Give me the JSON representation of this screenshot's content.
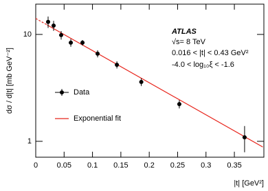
{
  "chart_data": {
    "type": "scatter",
    "x_label": "|t| [GeV²]",
    "y_label": "dσ / d|t| [mb GeV⁻²]",
    "annotations": [
      "ATLAS",
      "√s= 8 TeV",
      "0.016 < |t| < 0.43 GeV²",
      "-4.0 < log₁₀ξ < -1.6"
    ],
    "xlim": [
      0,
      0.402
    ],
    "ylim": [
      0.71,
      19.2
    ],
    "log_y": true,
    "xticks": [
      0,
      0.05,
      0.1,
      0.15,
      0.2,
      0.25,
      0.3,
      0.35
    ],
    "yticks": [
      1,
      10
    ],
    "series": [
      {
        "name": "Data",
        "color": "#000000",
        "x": [
          0.0218,
          0.0315,
          0.0448,
          0.0618,
          0.0824,
          0.109,
          0.143,
          0.186,
          0.253,
          0.368
        ],
        "values": [
          13.1,
          12.1,
          9.85,
          8.37,
          8.37,
          6.6,
          5.2,
          3.59,
          2.23,
          1.09
        ],
        "errors": [
          1.6,
          1.3,
          0.9,
          0.7,
          0.5,
          0.5,
          0.4,
          0.3,
          0.2,
          0.3
        ]
      },
      {
        "name": "Exponential fit",
        "color": "#e8251c",
        "x": [
          0,
          0.02,
          0.4
        ],
        "values": [
          14.1,
          12.28,
          0.885
        ]
      }
    ]
  }
}
